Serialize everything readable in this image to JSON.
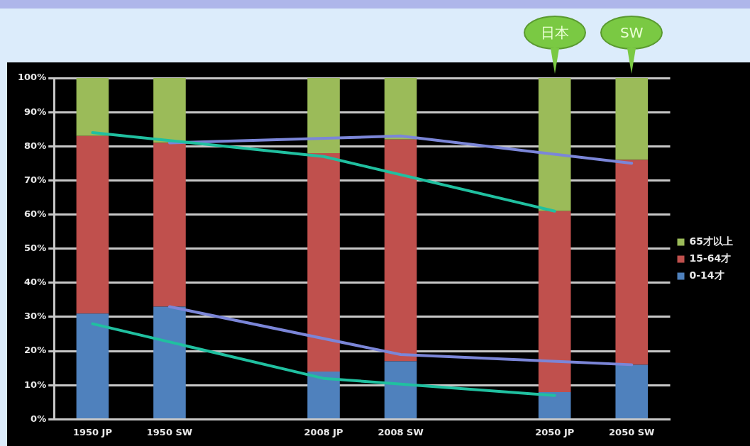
{
  "chart_data": {
    "type": "bar",
    "stacked": true,
    "categories": [
      "1950 JP",
      "1950 SW",
      null,
      "2008 JP",
      "2008 SW",
      null,
      "2050 JP",
      "2050 SW"
    ],
    "series": [
      {
        "name": "0-14才",
        "color": "#4f81bd",
        "values": [
          31,
          33,
          null,
          14,
          17,
          null,
          8,
          16
        ]
      },
      {
        "name": "15-64才",
        "color": "#c0504d",
        "values": [
          52,
          48,
          null,
          64,
          65,
          null,
          53,
          60
        ]
      },
      {
        "name": "65才以上",
        "color": "#9bbb59",
        "values": [
          17,
          19,
          null,
          22,
          18,
          null,
          39,
          24
        ]
      },
      {
        "type": "line",
        "color": "#20c0a0",
        "values": [
          84,
          null,
          null,
          77,
          null,
          null,
          61,
          null
        ]
      },
      {
        "type": "line",
        "color": "#20c0a0",
        "values": [
          28,
          null,
          null,
          12,
          null,
          null,
          7,
          null
        ]
      },
      {
        "type": "line",
        "color": "#7b86d8",
        "values": [
          null,
          81,
          null,
          null,
          83,
          null,
          null,
          75
        ]
      },
      {
        "type": "line",
        "color": "#7b86d8",
        "values": [
          null,
          33,
          null,
          null,
          19,
          null,
          null,
          16
        ]
      }
    ],
    "ylim": [
      0,
      100
    ],
    "yticks": [
      {
        "value": 0,
        "label": "0%"
      },
      {
        "value": 10,
        "label": "10%"
      },
      {
        "value": 20,
        "label": "20%"
      },
      {
        "value": 30,
        "label": "30%"
      },
      {
        "value": 40,
        "label": "40%"
      },
      {
        "value": 50,
        "label": "50%"
      },
      {
        "value": 60,
        "label": "60%"
      },
      {
        "value": 70,
        "label": "70%"
      },
      {
        "value": 80,
        "label": "80%"
      },
      {
        "value": 90,
        "label": "90%"
      },
      {
        "value": 100,
        "label": "100%"
      }
    ],
    "grid": "y",
    "legend": "right",
    "marker": "none",
    "annotations": [
      {
        "text": "日本",
        "x": "2050 JP",
        "y": 100
      },
      {
        "text": "SW",
        "x": "2050 SW",
        "y": 100
      }
    ]
  }
}
